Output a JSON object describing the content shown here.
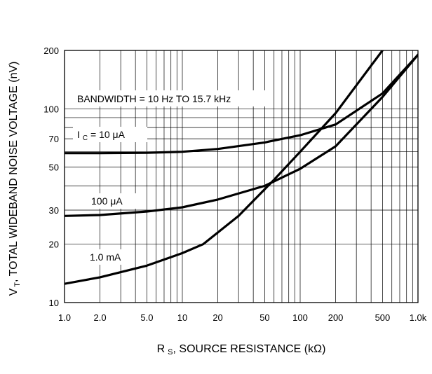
{
  "chart_data": {
    "type": "line",
    "title": "",
    "xlabel": {
      "main": "R",
      "sub": "S",
      "rest": ", SOURCE RESISTANCE (kΩ)"
    },
    "ylabel": {
      "main": "V",
      "sub": "T",
      "rest": ", TOTAL WIDEBAND NOISE VOLTAGE (nV)"
    },
    "xscale": "log",
    "yscale": "log",
    "xlim": [
      1,
      1000
    ],
    "ylim": [
      10,
      200
    ],
    "grid": true,
    "x_ticks": [
      {
        "v": 1,
        "label": "1.0"
      },
      {
        "v": 2,
        "label": "2.0"
      },
      {
        "v": 5,
        "label": "5.0"
      },
      {
        "v": 10,
        "label": "10"
      },
      {
        "v": 20,
        "label": "20"
      },
      {
        "v": 50,
        "label": "50"
      },
      {
        "v": 100,
        "label": "100"
      },
      {
        "v": 200,
        "label": "200"
      },
      {
        "v": 500,
        "label": "500"
      },
      {
        "v": 1000,
        "label": "1.0k"
      }
    ],
    "y_ticks": [
      {
        "v": 10,
        "label": "10"
      },
      {
        "v": 20,
        "label": "20"
      },
      {
        "v": 30,
        "label": "30"
      },
      {
        "v": 50,
        "label": "50"
      },
      {
        "v": 70,
        "label": "70"
      },
      {
        "v": 100,
        "label": "100"
      },
      {
        "v": 200,
        "label": "200"
      }
    ],
    "annotations": {
      "bandwidth": "BANDWIDTH = 10 Hz TO 15.7 kHz"
    },
    "series": [
      {
        "label": {
          "main": "I",
          "sub": "C",
          "rest": " = 10 μA"
        },
        "x": [
          1,
          2,
          5,
          10,
          20,
          50,
          100,
          200,
          500,
          1000
        ],
        "y": [
          59,
          59,
          59.3,
          60,
          62,
          67,
          73,
          83,
          120,
          190
        ]
      },
      {
        "label": {
          "main": "",
          "sub": "",
          "rest": "100 μA"
        },
        "x": [
          1,
          2,
          5,
          10,
          20,
          50,
          100,
          200,
          500,
          1000
        ],
        "y": [
          28,
          28.3,
          29.5,
          31,
          34,
          40,
          49,
          64,
          115,
          190
        ]
      },
      {
        "label": {
          "main": "",
          "sub": "",
          "rest": "1.0 mA"
        },
        "x": [
          1,
          2,
          5,
          10,
          15,
          30,
          60,
          100,
          200,
          500
        ],
        "y": [
          12.5,
          13.5,
          15.5,
          18,
          20,
          28,
          43,
          60,
          95,
          200
        ]
      }
    ]
  }
}
